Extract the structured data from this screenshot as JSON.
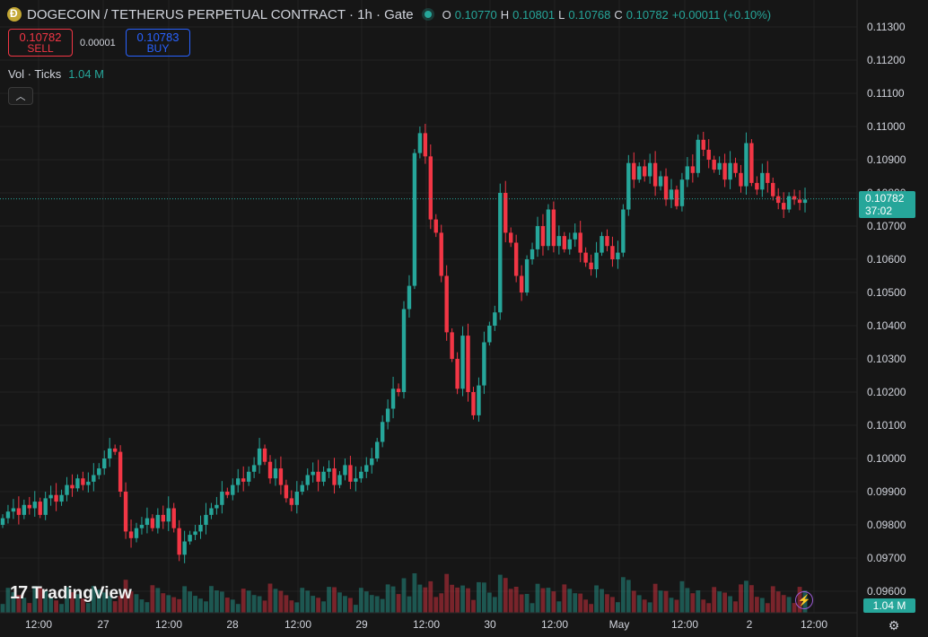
{
  "header": {
    "title": "DOGECOIN / TETHERUS PERPETUAL CONTRACT · 1h · Gate",
    "ohlc": {
      "o_label": "O",
      "o": "0.10770",
      "h_label": "H",
      "h": "0.10801",
      "l_label": "L",
      "l": "0.10768",
      "c_label": "C",
      "c": "0.10782",
      "change": "+0.00011 (+0.10%)"
    }
  },
  "trade": {
    "sell_price": "0.10782",
    "sell_label": "SELL",
    "spread": "0.00001",
    "buy_price": "0.10783",
    "buy_label": "BUY"
  },
  "volume_legend": {
    "label": "Vol · Ticks",
    "value": "1.04 M"
  },
  "collapse_icon": "chevron-up-icon",
  "brand": "TradingView",
  "last_price_tag": {
    "price": "0.10782",
    "countdown": "37:02"
  },
  "volume_tag": "1.04 M",
  "colors": {
    "up": "#26a69a",
    "down": "#f23645",
    "bg": "#161616",
    "grid": "#232323",
    "text": "#d1d4dc"
  },
  "chart_data": {
    "type": "candlestick",
    "title": "DOGECOIN / TETHERUS PERPETUAL CONTRACT · 1h · Gate",
    "price_ticks": [
      "0.11300",
      "0.11200",
      "0.11100",
      "0.11000",
      "0.10900",
      "0.10800",
      "0.10700",
      "0.10600",
      "0.10500",
      "0.10400",
      "0.10300",
      "0.10200",
      "0.10100",
      "0.10000",
      "0.09900",
      "0.09800",
      "0.09700",
      "0.09600"
    ],
    "ylim": [
      0.0955,
      0.1135
    ],
    "time_ticks": [
      "12:00",
      "27",
      "12:00",
      "28",
      "12:00",
      "29",
      "12:00",
      "30",
      "12:00",
      "May",
      "12:00",
      "2",
      "12:00"
    ],
    "last_price": 0.10782,
    "close": [
      0.0982,
      0.0984,
      0.0985,
      0.0983,
      0.0986,
      0.0985,
      0.0987,
      0.0983,
      0.0988,
      0.0989,
      0.0987,
      0.0989,
      0.0992,
      0.0991,
      0.0994,
      0.0992,
      0.0993,
      0.0995,
      0.0997,
      0.1,
      0.1003,
      0.1002,
      0.099,
      0.0978,
      0.0976,
      0.0979,
      0.098,
      0.0982,
      0.0979,
      0.0983,
      0.0981,
      0.0985,
      0.0979,
      0.0971,
      0.0975,
      0.0977,
      0.0978,
      0.098,
      0.0983,
      0.0985,
      0.0986,
      0.099,
      0.0989,
      0.0992,
      0.0994,
      0.0993,
      0.0996,
      0.0998,
      0.1003,
      0.0999,
      0.0994,
      0.0997,
      0.0992,
      0.0988,
      0.0986,
      0.099,
      0.0992,
      0.0995,
      0.0996,
      0.0993,
      0.0996,
      0.0997,
      0.0992,
      0.0995,
      0.0998,
      0.0993,
      0.0994,
      0.0996,
      0.0998,
      0.1,
      0.1005,
      0.1011,
      0.1015,
      0.1021,
      0.102,
      0.1045,
      0.1052,
      0.1092,
      0.1098,
      0.1091,
      0.1072,
      0.1068,
      0.1055,
      0.1038,
      0.103,
      0.1021,
      0.1037,
      0.102,
      0.1013,
      0.1022,
      0.1035,
      0.104,
      0.1044,
      0.108,
      0.1068,
      0.1065,
      0.1055,
      0.105,
      0.106,
      0.1063,
      0.107,
      0.1064,
      0.1075,
      0.1064,
      0.1067,
      0.1063,
      0.1066,
      0.1068,
      0.1062,
      0.1059,
      0.1057,
      0.1062,
      0.1067,
      0.1064,
      0.106,
      0.1062,
      0.1075,
      0.1089,
      0.1084,
      0.1088,
      0.1085,
      0.1089,
      0.1082,
      0.1085,
      0.1078,
      0.1081,
      0.1076,
      0.1084,
      0.1088,
      0.1086,
      0.1096,
      0.1093,
      0.109,
      0.1087,
      0.1089,
      0.1084,
      0.1089,
      0.1086,
      0.1082,
      0.1095,
      0.1083,
      0.1081,
      0.1086,
      0.1083,
      0.1079,
      0.1077,
      0.1075,
      0.1079,
      0.1078,
      0.1077,
      0.1078
    ]
  }
}
